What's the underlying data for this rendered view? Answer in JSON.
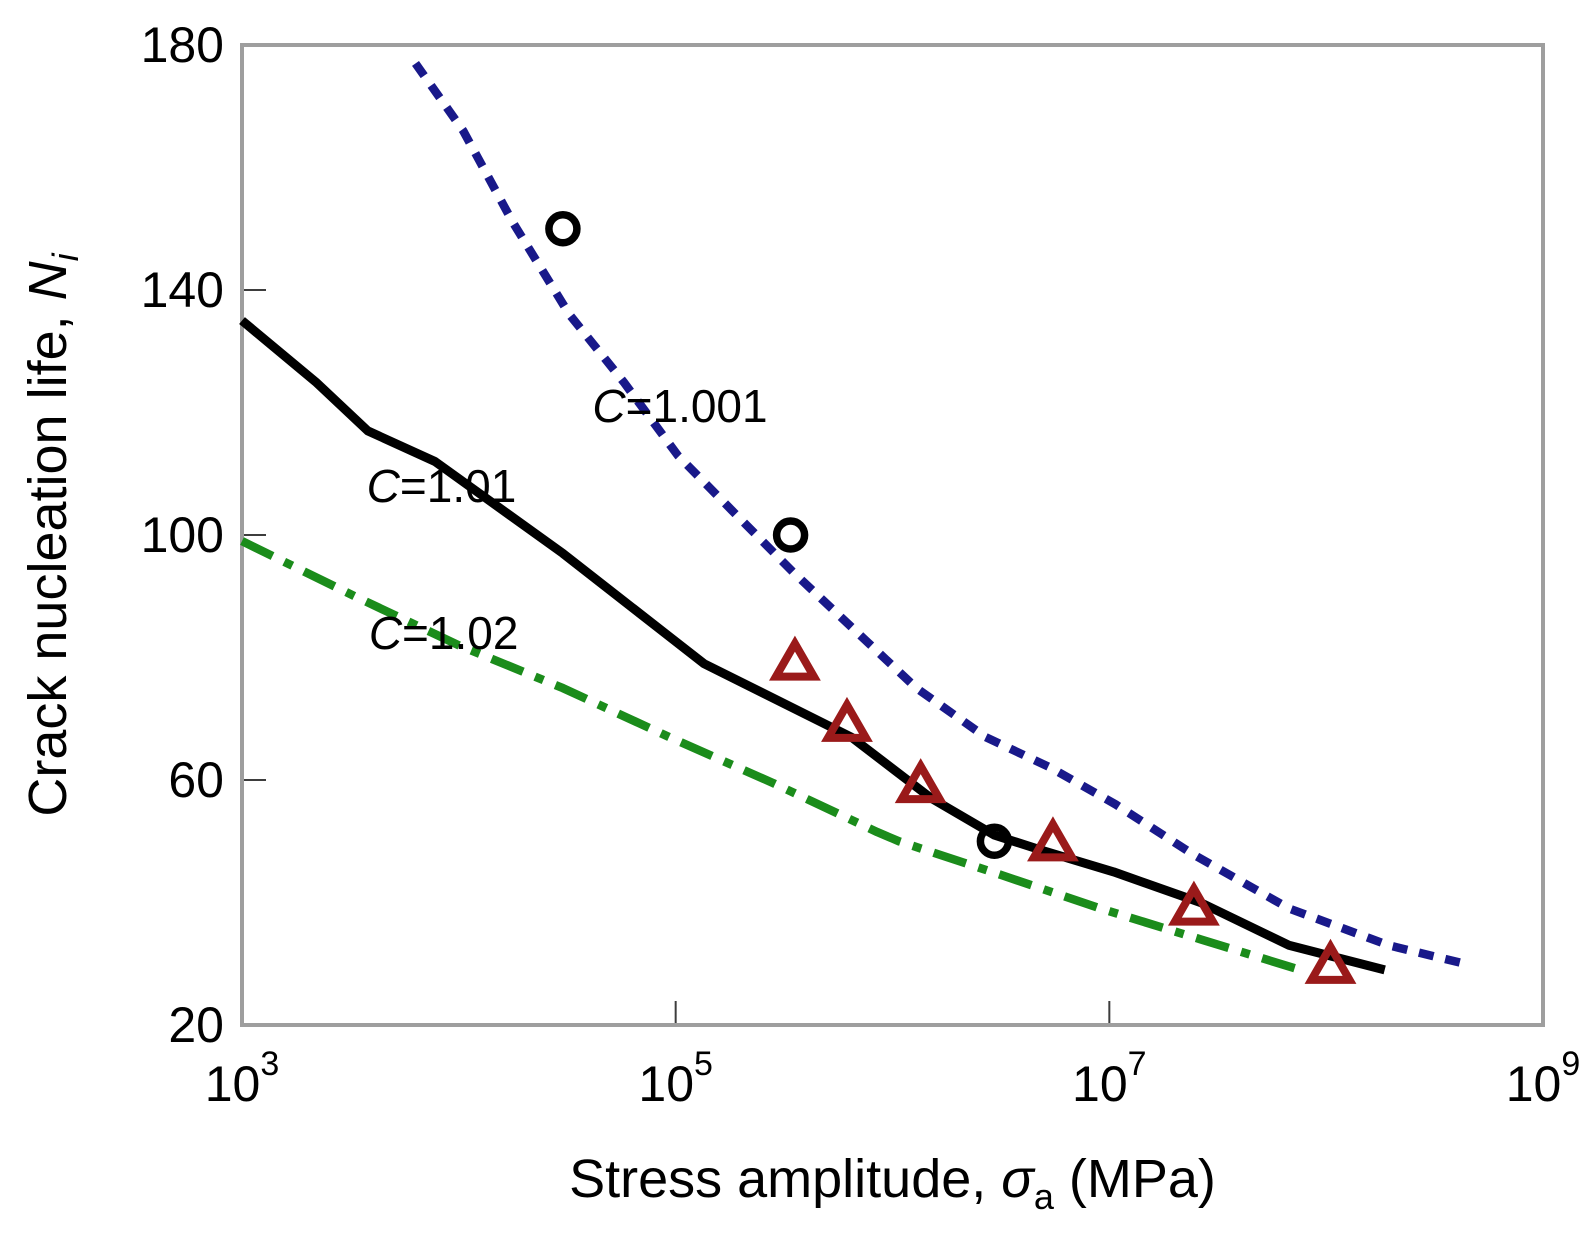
{
  "figure": {
    "background": "#ffffff",
    "plot_border_color": "#9e9e9e",
    "tick_color": "#3d3d3d",
    "text_color": "#000000"
  },
  "chart_data": {
    "type": "line",
    "title": "",
    "legend": "none",
    "grid": false,
    "x_encoding": "log10 of stress amplitude in MPa",
    "x_axis": {
      "title_prefix": "Stress amplitude, ",
      "title_symbol": "σ",
      "title_sub": "a",
      "title_suffix": " (MPa)",
      "scale": "log",
      "tick_base": "10",
      "tick_exponents": [
        3,
        5,
        7,
        9
      ],
      "range_exponents": [
        3,
        9
      ]
    },
    "y_axis": {
      "title_prefix": "Crack nucleation life, ",
      "title_symbol": "N",
      "title_sub": "i",
      "ticks": [
        180,
        140,
        100,
        60,
        20
      ],
      "range": [
        20,
        180
      ]
    },
    "series": [
      {
        "name": "C=1.001",
        "color": "#19198a",
        "line_style": "dotted",
        "dash": "15 12",
        "width": 8.5,
        "points": [
          [
            3.8,
            177
          ],
          [
            4.02,
            166
          ],
          [
            4.25,
            151
          ],
          [
            4.51,
            136
          ],
          [
            4.76,
            125
          ],
          [
            5.01,
            113
          ],
          [
            5.26,
            104
          ],
          [
            5.54,
            94
          ],
          [
            5.81,
            85
          ],
          [
            6.11,
            75
          ],
          [
            6.43,
            67
          ],
          [
            6.73,
            62
          ],
          [
            7.03,
            56
          ],
          [
            7.38,
            48
          ],
          [
            7.83,
            39
          ],
          [
            8.29,
            33
          ],
          [
            8.64,
            30
          ]
        ]
      },
      {
        "name": "C=1.01",
        "color": "#000000",
        "line_style": "solid",
        "dash": "",
        "width": 9,
        "points": [
          [
            3.0,
            135
          ],
          [
            3.34,
            125
          ],
          [
            3.58,
            117
          ],
          [
            3.89,
            112
          ],
          [
            4.48,
            97
          ],
          [
            5.13,
            79
          ],
          [
            5.81,
            67
          ],
          [
            6.18,
            57
          ],
          [
            6.47,
            51
          ],
          [
            6.69,
            48.5
          ],
          [
            7.02,
            45
          ],
          [
            7.42,
            40
          ],
          [
            7.83,
            33
          ],
          [
            8.27,
            29
          ]
        ]
      },
      {
        "name": "C=1.02",
        "color": "#1b8c1b",
        "line_style": "long-dash-short-dash",
        "dash": "34 13 9 13",
        "width": 8.5,
        "points": [
          [
            3.0,
            99
          ],
          [
            3.52,
            90
          ],
          [
            4.0,
            82
          ],
          [
            4.48,
            75
          ],
          [
            4.97,
            67
          ],
          [
            5.45,
            59.5
          ],
          [
            5.93,
            51.5
          ],
          [
            6.03,
            50
          ],
          [
            6.5,
            44.5
          ],
          [
            6.96,
            39
          ],
          [
            7.42,
            34
          ],
          [
            7.88,
            29
          ]
        ]
      }
    ],
    "scatter": [
      {
        "name": "circle-data",
        "marker": "circle",
        "color": "#000000",
        "points": [
          [
            4.48,
            150
          ],
          [
            5.53,
            100
          ],
          [
            6.47,
            50
          ]
        ]
      },
      {
        "name": "triangle-data",
        "marker": "triangle",
        "color": "#9a1a1a",
        "points": [
          [
            5.55,
            79
          ],
          [
            5.79,
            69
          ],
          [
            6.13,
            59
          ],
          [
            6.74,
            49.5
          ],
          [
            7.39,
            39
          ],
          [
            8.02,
            29.5
          ]
        ]
      }
    ],
    "annotations": [
      {
        "symbol": "C",
        "text": "=1.001",
        "log10_x": 5.02,
        "y": 121
      },
      {
        "symbol": "C",
        "text": "=1.01",
        "log10_x": 3.92,
        "y": 108
      },
      {
        "symbol": "C",
        "text": "=1.02",
        "log10_x": 3.93,
        "y": 84
      }
    ]
  }
}
